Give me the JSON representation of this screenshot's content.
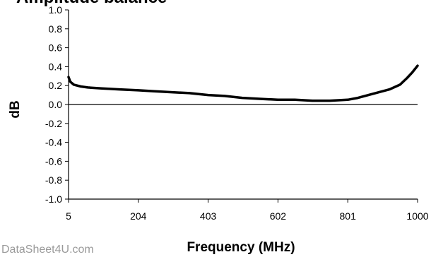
{
  "chart_data": {
    "type": "line",
    "title": "Amplitude balance",
    "xlabel": "Frequency (MHz)",
    "ylabel": "dB",
    "xlim": [
      5,
      1000
    ],
    "ylim": [
      -1.0,
      1.0
    ],
    "x_ticks": [
      "5",
      "204",
      "403",
      "602",
      "801",
      "1000"
    ],
    "y_ticks": [
      "1.0",
      "0.8",
      "0.6",
      "0.4",
      "0.2",
      "0.0",
      "-0.2",
      "-0.4",
      "-0.6",
      "-0.8",
      "-1.0"
    ],
    "grid": false,
    "series": [
      {
        "color": "#000000",
        "x": [
          5,
          10,
          20,
          40,
          60,
          100,
          150,
          204,
          250,
          300,
          350,
          403,
          450,
          500,
          550,
          602,
          650,
          700,
          750,
          801,
          830,
          860,
          890,
          920,
          950,
          970,
          985,
          1000
        ],
        "y": [
          0.29,
          0.24,
          0.21,
          0.19,
          0.18,
          0.17,
          0.16,
          0.15,
          0.14,
          0.13,
          0.12,
          0.1,
          0.09,
          0.07,
          0.06,
          0.05,
          0.05,
          0.04,
          0.04,
          0.05,
          0.07,
          0.1,
          0.13,
          0.16,
          0.21,
          0.28,
          0.34,
          0.41
        ]
      }
    ]
  },
  "watermark": "DataSheet4U.com"
}
